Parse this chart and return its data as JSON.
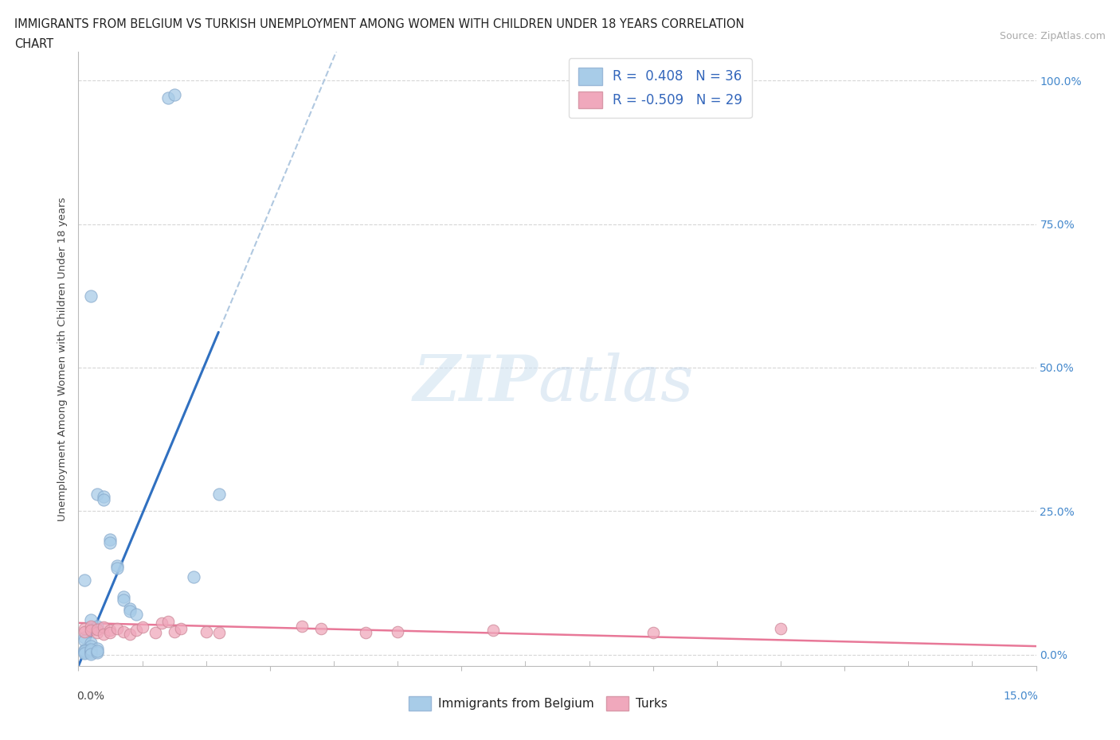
{
  "title_line1": "IMMIGRANTS FROM BELGIUM VS TURKISH UNEMPLOYMENT AMONG WOMEN WITH CHILDREN UNDER 18 YEARS CORRELATION",
  "title_line2": "CHART",
  "source": "Source: ZipAtlas.com",
  "ylabel": "Unemployment Among Women with Children Under 18 years",
  "belgium_R": 0.408,
  "belgium_N": 36,
  "turks_R": -0.509,
  "turks_N": 29,
  "belgium_color": "#a8cce8",
  "turks_color": "#f0a8bc",
  "belgium_line_color": "#3070c0",
  "turks_line_color": "#e87898",
  "dashed_line_color": "#b0c8e0",
  "legend_label_belgium": "Immigrants from Belgium",
  "legend_label_turks": "Turks",
  "watermark_zip": "ZIP",
  "watermark_atlas": "atlas",
  "background_color": "#ffffff",
  "xlim": [
    0.0,
    0.15
  ],
  "ylim": [
    -0.02,
    1.05
  ],
  "belgium_x": [
    0.014,
    0.015,
    0.002,
    0.003,
    0.004,
    0.004,
    0.005,
    0.005,
    0.006,
    0.006,
    0.007,
    0.007,
    0.008,
    0.008,
    0.009,
    0.001,
    0.002,
    0.003,
    0.001,
    0.001,
    0.002,
    0.002,
    0.003,
    0.018,
    0.022,
    0.001,
    0.001,
    0.001,
    0.001,
    0.001,
    0.002,
    0.002,
    0.002,
    0.002,
    0.003,
    0.003
  ],
  "belgium_y": [
    0.97,
    0.975,
    0.625,
    0.28,
    0.275,
    0.27,
    0.2,
    0.195,
    0.155,
    0.15,
    0.1,
    0.095,
    0.08,
    0.075,
    0.07,
    0.13,
    0.06,
    0.05,
    0.03,
    0.025,
    0.02,
    0.015,
    0.01,
    0.135,
    0.28,
    0.005,
    0.008,
    0.003,
    0.006,
    0.002,
    0.004,
    0.007,
    0.009,
    0.001,
    0.003,
    0.006
  ],
  "turks_x": [
    0.001,
    0.001,
    0.002,
    0.002,
    0.003,
    0.003,
    0.004,
    0.004,
    0.005,
    0.005,
    0.006,
    0.007,
    0.008,
    0.009,
    0.01,
    0.012,
    0.013,
    0.014,
    0.015,
    0.016,
    0.02,
    0.022,
    0.035,
    0.038,
    0.045,
    0.05,
    0.065,
    0.09,
    0.11
  ],
  "turks_y": [
    0.045,
    0.04,
    0.05,
    0.042,
    0.038,
    0.044,
    0.048,
    0.035,
    0.042,
    0.038,
    0.045,
    0.04,
    0.035,
    0.042,
    0.048,
    0.038,
    0.055,
    0.058,
    0.04,
    0.045,
    0.04,
    0.038,
    0.05,
    0.045,
    0.038,
    0.04,
    0.042,
    0.038,
    0.045
  ],
  "trend_bel_start_x": 0.0,
  "trend_bel_solid_end_x": 0.022,
  "trend_bel_end_x": 0.15,
  "trend_turks_start_x": 0.0,
  "trend_turks_end_x": 0.15
}
